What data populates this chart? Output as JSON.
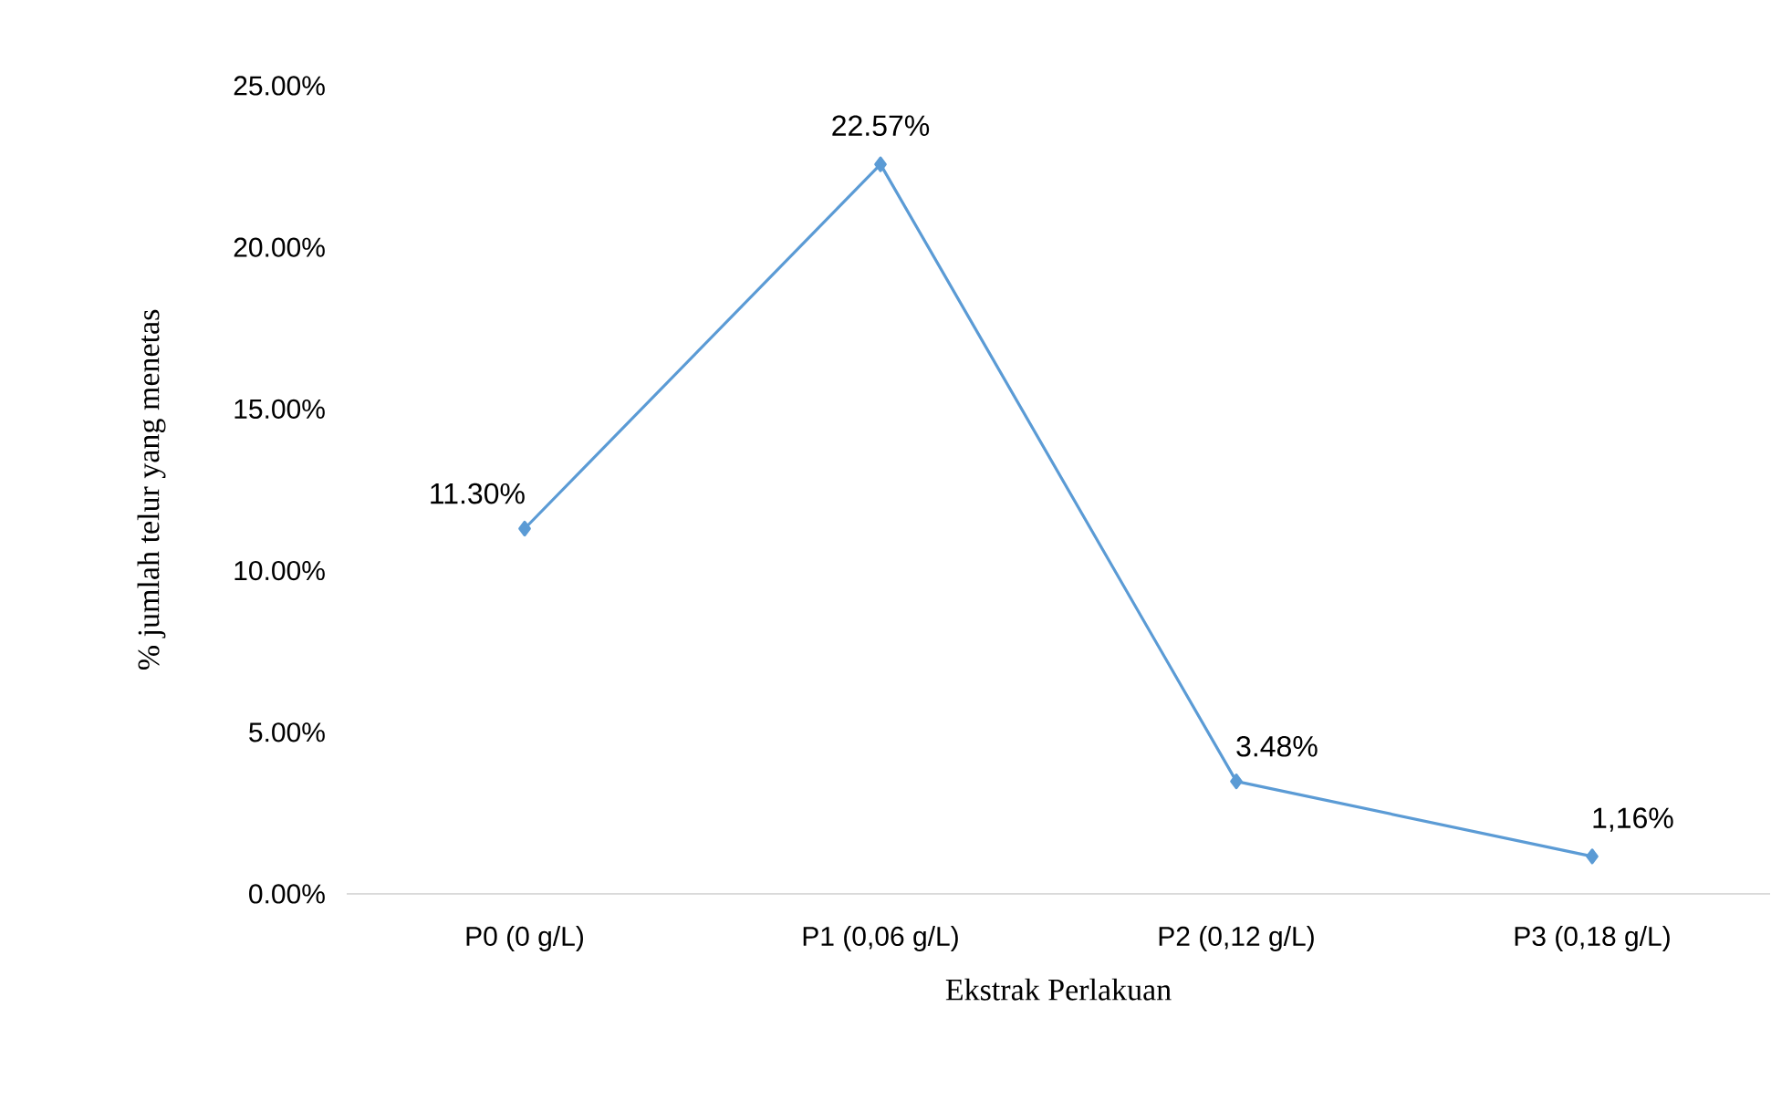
{
  "chart_data": {
    "type": "line",
    "xlabel": "Ekstrak Perlakuan",
    "ylabel": "% jumlah telur yang  menetas",
    "categories": [
      "P0 (0 g/L)",
      "P1 (0,06 g/L)",
      "P2 (0,12 g/L)",
      "P3 (0,18 g/L)"
    ],
    "values": [
      11.3,
      22.57,
      3.48,
      1.16
    ],
    "value_labels": [
      "11.30%",
      "22.57%",
      "3.48%",
      "1,16%"
    ],
    "color": "#5b9bd5",
    "marker": "diamond",
    "line_style": "solid",
    "grid": false,
    "ylim": [
      0,
      25
    ],
    "yticks": [
      {
        "value": 0,
        "label": "0.00%"
      },
      {
        "value": 5,
        "label": "5.00%"
      },
      {
        "value": 10,
        "label": "10.00%"
      },
      {
        "value": 15,
        "label": "15.00%"
      },
      {
        "value": 20,
        "label": "20.00%"
      },
      {
        "value": 25,
        "label": "25.00%"
      }
    ]
  }
}
